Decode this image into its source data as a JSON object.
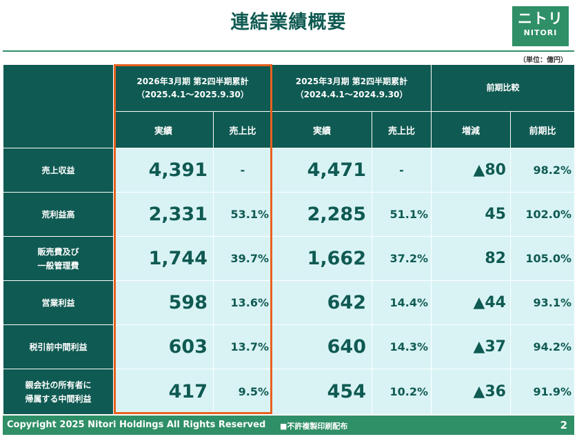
{
  "title": "連結業績概要",
  "logo": {
    "mark": "ニトリ",
    "word": "NITORI"
  },
  "unit": "（単位：億円）",
  "columns": {
    "current": {
      "line1": "2026年3月期 第2四半期累計",
      "line2": "（2025.4.1～2025.9.30）"
    },
    "previous": {
      "line1": "2025年3月期 第2四半期累計",
      "line2": "（2024.4.1～2024.9.30）"
    },
    "compare": "前期比較",
    "result": "実績",
    "ratio": "売上比",
    "change": "増減",
    "yoy": "前期比"
  },
  "rows": [
    {
      "label1": "売上収益",
      "label2": "",
      "cur": "4,391",
      "cur_ratio": "-",
      "prev": "4,471",
      "prev_ratio": "-",
      "change": "▲80",
      "yoy": "98.2%"
    },
    {
      "label1": "荒利益高",
      "label2": "",
      "cur": "2,331",
      "cur_ratio": "53.1%",
      "prev": "2,285",
      "prev_ratio": "51.1%",
      "change": "45",
      "yoy": "102.0%"
    },
    {
      "label1": "販売費及び",
      "label2": "一般管理費",
      "cur": "1,744",
      "cur_ratio": "39.7%",
      "prev": "1,662",
      "prev_ratio": "37.2%",
      "change": "82",
      "yoy": "105.0%"
    },
    {
      "label1": "営業利益",
      "label2": "",
      "cur": "598",
      "cur_ratio": "13.6%",
      "prev": "642",
      "prev_ratio": "14.4%",
      "change": "▲44",
      "yoy": "93.1%"
    },
    {
      "label1": "税引前中間利益",
      "label2": "",
      "cur": "603",
      "cur_ratio": "13.7%",
      "prev": "640",
      "prev_ratio": "14.3%",
      "change": "▲37",
      "yoy": "94.2%"
    },
    {
      "label1": "親会社の所有者に",
      "label2": "帰属する中間利益",
      "cur": "417",
      "cur_ratio": "9.5%",
      "prev": "454",
      "prev_ratio": "10.2%",
      "change": "▲36",
      "yoy": "91.9%"
    }
  ],
  "footer": {
    "copyright": "Copyright 2025 Nitori Holdings All Rights Reserved",
    "notice": "■不許複製印刷配布",
    "page": "2"
  },
  "colors": {
    "header_bg": "#0f5a52",
    "cell_bg": "#d9f3f5",
    "accent_green": "#2f8f66",
    "highlight": "#e8611e"
  }
}
